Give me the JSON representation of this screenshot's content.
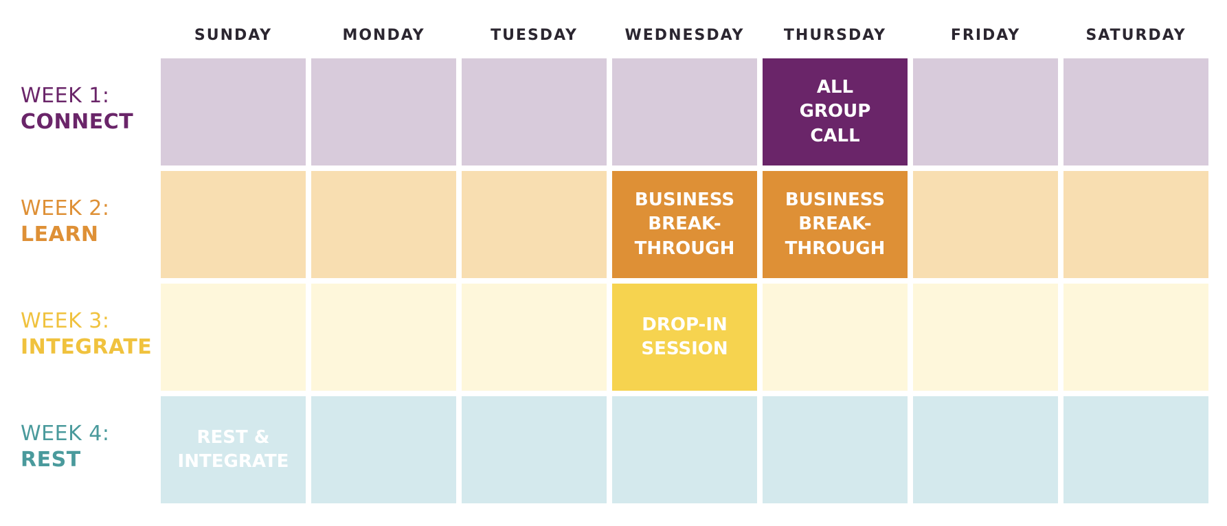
{
  "days": [
    "SUNDAY",
    "MONDAY",
    "TUESDAY",
    "WEDNESDAY",
    "THURSDAY",
    "FRIDAY",
    "SATURDAY"
  ],
  "weeks": [
    {
      "week": "WEEK 1:",
      "theme": "CONNECT",
      "label_color": "#6a2569",
      "light_color": "#d8cbdb",
      "dark_color": "#6a2569",
      "events": [
        {
          "day": 4,
          "text": "ALL\nGROUP\nCALL",
          "style": "dark"
        }
      ]
    },
    {
      "week": "WEEK 2:",
      "theme": "LEARN",
      "label_color": "#de9036",
      "light_color": "#f8deb1",
      "dark_color": "#de9036",
      "events": [
        {
          "day": 3,
          "text": "BUSINESS\nBREAK-\nTHROUGH",
          "style": "dark"
        },
        {
          "day": 4,
          "text": "BUSINESS\nBREAK-\nTHROUGH",
          "style": "dark"
        }
      ]
    },
    {
      "week": "WEEK 3:",
      "theme": "INTEGRATE",
      "label_color": "#f0c23e",
      "light_color": "#fef7db",
      "dark_color": "#f6d34f",
      "events": [
        {
          "day": 3,
          "text": "DROP-IN\nSESSION",
          "style": "dark"
        }
      ]
    },
    {
      "week": "WEEK 4:",
      "theme": "REST",
      "label_color": "#4a9a9c",
      "light_color": "#d4e9ed",
      "dark_color": "#4a9a9c",
      "events": [
        {
          "day": 0,
          "text": "REST &\nINTEGRATE",
          "style": "light"
        }
      ]
    }
  ]
}
